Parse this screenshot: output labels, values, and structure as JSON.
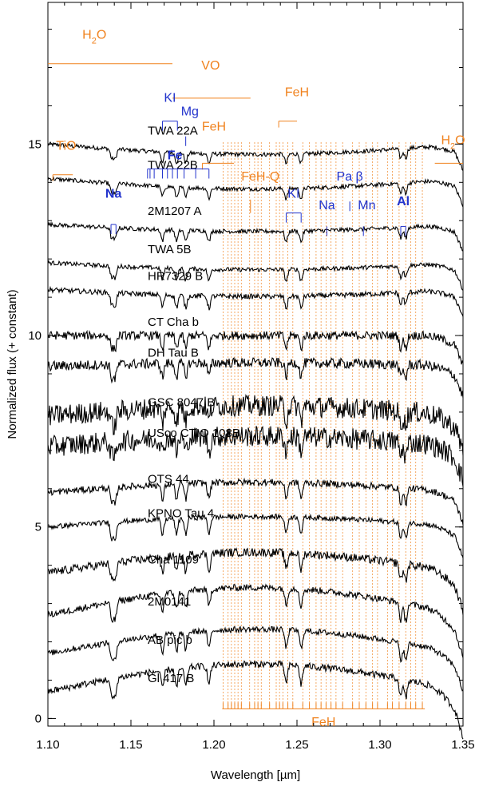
{
  "chart_data": {
    "type": "line",
    "xlabel_prefix": "Wavelength [",
    "xlabel_unit": "µm",
    "xlabel_suffix": "]",
    "ylabel": "Normalized flux (+ constant)",
    "xlim": [
      1.1,
      1.35
    ],
    "ylim": [
      -0.2,
      18.7
    ],
    "x_ticks": [
      {
        "value": 1.1,
        "label": "1.10"
      },
      {
        "value": 1.15,
        "label": "1.15"
      },
      {
        "value": 1.2,
        "label": "1.20"
      },
      {
        "value": 1.25,
        "label": "1.25"
      },
      {
        "value": 1.3,
        "label": "1.30"
      },
      {
        "value": 1.35,
        "label": "1.35"
      }
    ],
    "y_ticks": [
      {
        "value": 0,
        "label": "0"
      },
      {
        "value": 5,
        "label": "5"
      },
      {
        "value": 10,
        "label": "10"
      },
      {
        "value": 15,
        "label": "15"
      }
    ],
    "series": [
      {
        "name": "TWA 22A",
        "offset": 15.0,
        "noise": 0.05,
        "slope": -0.3,
        "end_drop": 0.3
      },
      {
        "name": "TWA 22B",
        "offset": 14.1,
        "noise": 0.05,
        "slope": -0.3,
        "end_drop": 0.3
      },
      {
        "name": "2M1207 A",
        "offset": 12.9,
        "noise": 0.05,
        "slope": -0.2,
        "end_drop": 0.3
      },
      {
        "name": "TWA 5B",
        "offset": 11.9,
        "noise": 0.05,
        "slope": -0.2,
        "end_drop": 0.3
      },
      {
        "name": "HR7329 B",
        "offset": 11.2,
        "noise": 0.06,
        "slope": -0.2,
        "end_drop": 0.3
      },
      {
        "name": "CT Cha b",
        "offset": 10.0,
        "noise": 0.1,
        "slope": 0.0,
        "end_drop": 0.4
      },
      {
        "name": "DH Tau B",
        "offset": 9.2,
        "noise": 0.12,
        "slope": 0.1,
        "end_drop": 0.4
      },
      {
        "name": "GSC 8047 B",
        "offset": 7.9,
        "noise": 0.25,
        "slope": 0.3,
        "end_drop": 0.5
      },
      {
        "name": "USco CTIO 108B",
        "offset": 7.1,
        "noise": 0.25,
        "slope": 0.3,
        "end_drop": 0.5
      },
      {
        "name": "OTS 44",
        "offset": 5.9,
        "noise": 0.08,
        "slope": 0.3,
        "end_drop": 0.4
      },
      {
        "name": "KPNO Tau 4",
        "offset": 5.0,
        "noise": 0.06,
        "slope": 0.3,
        "end_drop": 0.4
      },
      {
        "name": "Cha 1109",
        "offset": 3.8,
        "noise": 0.1,
        "slope": 0.6,
        "end_drop": 0.6
      },
      {
        "name": "2M0141",
        "offset": 2.7,
        "noise": 0.08,
        "slope": 0.8,
        "end_drop": 0.7
      },
      {
        "name": "AB pic b",
        "offset": 1.7,
        "noise": 0.07,
        "slope": 0.7,
        "end_drop": 0.6
      },
      {
        "name": "Gl 417 B",
        "offset": 0.7,
        "noise": 0.08,
        "slope": 0.8,
        "end_drop": 0.8
      }
    ],
    "line_color": "#000000",
    "annotations": {
      "molecular_color": "#f0821e",
      "atomic_color": "#2233cc",
      "molecular_bands": [
        {
          "label": "H2O",
          "x1": 1.1,
          "x2": 1.175,
          "y": 17.1,
          "lx": 1.128,
          "ly": 17.75,
          "sub": true
        },
        {
          "label": "VO",
          "x1": 1.175,
          "x2": 1.222,
          "y": 16.2,
          "lx": 1.198,
          "ly": 16.95
        },
        {
          "label": "FeH",
          "x1": 1.193,
          "x2": 1.212,
          "y": 14.5,
          "lx": 1.2,
          "ly": 15.35,
          "hook": true
        },
        {
          "label": "FeH",
          "x1": 1.239,
          "x2": 1.25,
          "y": 15.6,
          "lx": 1.25,
          "ly": 16.25,
          "hook": true
        },
        {
          "label": "TiO",
          "x1": 1.103,
          "x2": 1.115,
          "y": 14.2,
          "lx": 1.111,
          "ly": 14.85,
          "hook": true
        },
        {
          "label": "H2O",
          "x1": 1.333,
          "x2": 1.35,
          "y": 14.5,
          "lx": 1.344,
          "ly": 15.0,
          "sub": true
        }
      ],
      "feh_q": {
        "label": "FeH-Q",
        "x": 1.222,
        "lx": 1.228,
        "ly": 14.05,
        "y1": 13.2,
        "y2": 13.55
      },
      "atomic_lines": [
        {
          "label": "Na",
          "ticks": [
            1.138,
            1.141
          ],
          "tick_top": 12.9,
          "tick_bottom": 12.65,
          "lx": 1.1395,
          "ly": 13.6,
          "bold": true
        },
        {
          "label": "KI",
          "ticks": [
            1.169,
            1.178
          ],
          "tick_top": 15.6,
          "tick_bottom": 15.35,
          "lx": 1.1735,
          "ly": 16.1
        },
        {
          "label": "Mg",
          "ticks": [
            1.183
          ],
          "tick_top": 15.2,
          "tick_bottom": 14.95,
          "lx": 1.1855,
          "ly": 15.75
        },
        {
          "label": "Fe",
          "ticks": [
            1.16,
            1.1615,
            1.164,
            1.169,
            1.172,
            1.175,
            1.178,
            1.182,
            1.189,
            1.197
          ],
          "tick_top": 14.35,
          "tick_bottom": 14.1,
          "lx": 1.1765,
          "ly": 14.6,
          "bold": true
        },
        {
          "label": "KI",
          "ticks": [
            1.2435,
            1.2525
          ],
          "tick_top": 13.2,
          "tick_bottom": 12.95,
          "lx": 1.248,
          "ly": 13.6
        },
        {
          "label": "Na",
          "ticks": [
            1.268
          ],
          "tick_top": 12.85,
          "tick_bottom": 12.6,
          "lx": 1.268,
          "ly": 13.3
        },
        {
          "label": "Pa β",
          "ticks": [
            1.2818
          ],
          "tick_top": 13.5,
          "tick_bottom": 13.25,
          "lx": 1.2818,
          "ly": 14.05
        },
        {
          "label": "Mn",
          "ticks": [
            1.29
          ],
          "tick_top": 12.85,
          "tick_bottom": 12.6,
          "lx": 1.292,
          "ly": 13.3
        },
        {
          "label": "Al",
          "ticks": [
            1.3125,
            1.3155
          ],
          "tick_top": 12.85,
          "tick_bottom": 12.6,
          "lx": 1.314,
          "ly": 13.4,
          "bold": true
        }
      ],
      "feh_label": "FeH",
      "feh_region": [
        1.205,
        1.327
      ],
      "feh_bracket_y": 0.25,
      "feh_label_y": -0.2,
      "feh_lines": [
        1.2055,
        1.2085,
        1.2105,
        1.2125,
        1.2145,
        1.2165,
        1.2215,
        1.2245,
        1.2265,
        1.2285,
        1.2335,
        1.2375,
        1.2395,
        1.2415,
        1.2445,
        1.2475,
        1.2535,
        1.2575,
        1.2615,
        1.2645,
        1.2675,
        1.2705,
        1.2735,
        1.2775,
        1.2835,
        1.2875,
        1.2915,
        1.2955,
        1.2985,
        1.3045,
        1.3075,
        1.3115,
        1.3155,
        1.3185,
        1.3215,
        1.3255
      ]
    }
  }
}
